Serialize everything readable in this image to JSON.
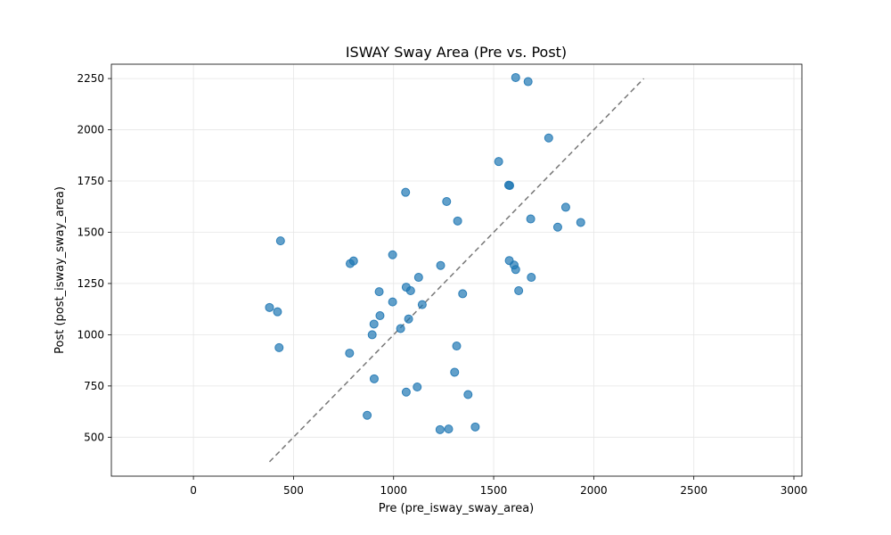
{
  "chart_data": {
    "type": "scatter",
    "title": "ISWAY Sway Area (Pre vs. Post)",
    "xlabel": "Pre (pre_isway_sway_area)",
    "ylabel": "Post (post_isway_sway_area)",
    "xlim": [
      -410,
      3040
    ],
    "ylim": [
      310,
      2320
    ],
    "xticks": [
      0,
      500,
      1000,
      1500,
      2000,
      2500,
      3000
    ],
    "yticks": [
      500,
      750,
      1000,
      1250,
      1500,
      1750,
      2000,
      2250
    ],
    "grid": true,
    "colors": {
      "points": "#1f77b4",
      "reference_line": "#555555"
    },
    "reference_line": {
      "style": "dashed",
      "x": [
        380,
        2250
      ],
      "y": [
        380,
        2250
      ]
    },
    "points": [
      {
        "x": 1610,
        "y": 2255
      },
      {
        "x": 1672,
        "y": 2235
      },
      {
        "x": 1775,
        "y": 1960
      },
      {
        "x": 1525,
        "y": 1845
      },
      {
        "x": 1575,
        "y": 1730
      },
      {
        "x": 1580,
        "y": 1728
      },
      {
        "x": 1060,
        "y": 1695
      },
      {
        "x": 1265,
        "y": 1650
      },
      {
        "x": 1860,
        "y": 1622
      },
      {
        "x": 1685,
        "y": 1565
      },
      {
        "x": 1320,
        "y": 1555
      },
      {
        "x": 1935,
        "y": 1548
      },
      {
        "x": 1820,
        "y": 1525
      },
      {
        "x": 435,
        "y": 1458
      },
      {
        "x": 995,
        "y": 1390
      },
      {
        "x": 800,
        "y": 1360
      },
      {
        "x": 783,
        "y": 1347
      },
      {
        "x": 1235,
        "y": 1338
      },
      {
        "x": 1578,
        "y": 1362
      },
      {
        "x": 1602,
        "y": 1340
      },
      {
        "x": 1610,
        "y": 1318
      },
      {
        "x": 1125,
        "y": 1280
      },
      {
        "x": 1688,
        "y": 1280
      },
      {
        "x": 1063,
        "y": 1232
      },
      {
        "x": 928,
        "y": 1210
      },
      {
        "x": 1085,
        "y": 1215
      },
      {
        "x": 1625,
        "y": 1215
      },
      {
        "x": 1345,
        "y": 1200
      },
      {
        "x": 995,
        "y": 1160
      },
      {
        "x": 1143,
        "y": 1147
      },
      {
        "x": 380,
        "y": 1133
      },
      {
        "x": 420,
        "y": 1112
      },
      {
        "x": 932,
        "y": 1093
      },
      {
        "x": 1075,
        "y": 1077
      },
      {
        "x": 902,
        "y": 1052
      },
      {
        "x": 1035,
        "y": 1030
      },
      {
        "x": 893,
        "y": 1000
      },
      {
        "x": 428,
        "y": 937
      },
      {
        "x": 1315,
        "y": 945
      },
      {
        "x": 780,
        "y": 910
      },
      {
        "x": 1305,
        "y": 817
      },
      {
        "x": 903,
        "y": 785
      },
      {
        "x": 1118,
        "y": 745
      },
      {
        "x": 1063,
        "y": 720
      },
      {
        "x": 1372,
        "y": 708
      },
      {
        "x": 868,
        "y": 607
      },
      {
        "x": 1408,
        "y": 550
      },
      {
        "x": 1275,
        "y": 540
      },
      {
        "x": 1232,
        "y": 537
      }
    ]
  }
}
